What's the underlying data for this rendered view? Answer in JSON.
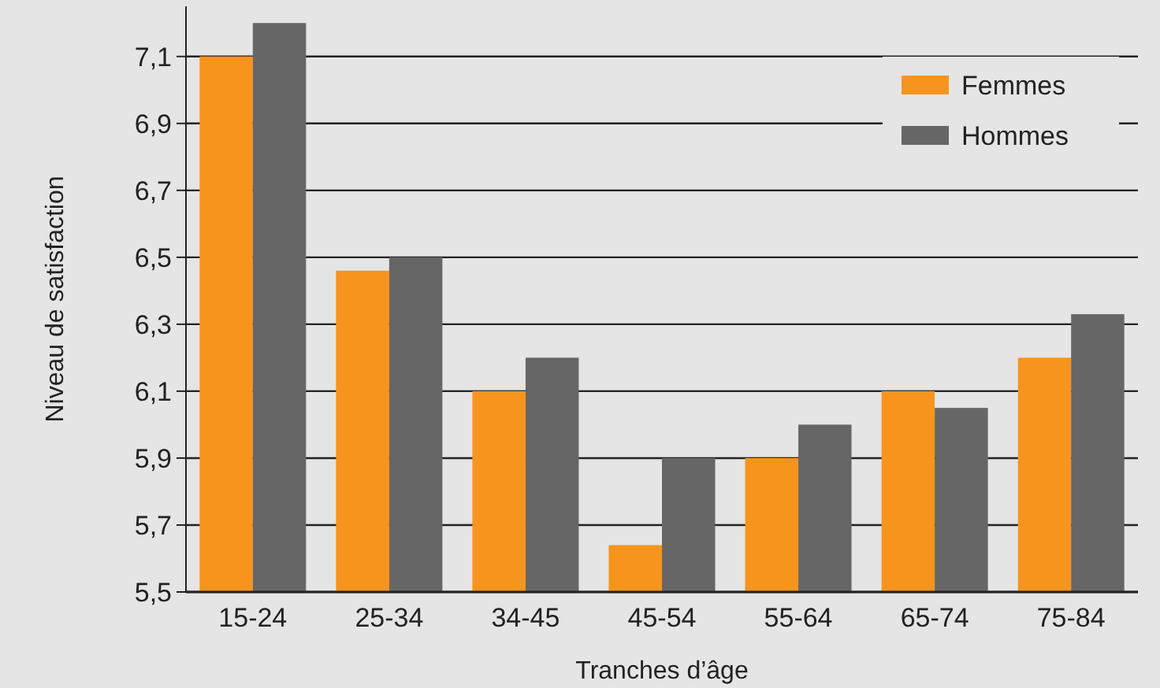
{
  "chart_data": {
    "type": "bar",
    "xlabel": "Tranches d’âge",
    "ylabel": "Niveau de satisfaction",
    "categories": [
      "15-24",
      "25-34",
      "34-45",
      "45-54",
      "55-64",
      "65-74",
      "75-84"
    ],
    "series": [
      {
        "name": "Femmes",
        "color": "#f7941d",
        "values": [
          7.1,
          6.46,
          6.1,
          5.64,
          5.9,
          6.1,
          6.2
        ]
      },
      {
        "name": "Hommes",
        "color": "#666666",
        "values": [
          7.2,
          6.5,
          6.2,
          5.9,
          6.0,
          6.05,
          6.33
        ]
      }
    ],
    "ylim": [
      5.5,
      7.25
    ],
    "yticks": [
      {
        "value": 5.5,
        "label": "5,5"
      },
      {
        "value": 5.7,
        "label": "5,7"
      },
      {
        "value": 5.9,
        "label": "5,9"
      },
      {
        "value": 6.1,
        "label": "6,1"
      },
      {
        "value": 6.3,
        "label": "6,3"
      },
      {
        "value": 6.5,
        "label": "6,5"
      },
      {
        "value": 6.7,
        "label": "6,7"
      },
      {
        "value": 6.9,
        "label": "6,9"
      },
      {
        "value": 7.1,
        "label": "7,1"
      }
    ],
    "grid": "y",
    "legend": "top right"
  }
}
